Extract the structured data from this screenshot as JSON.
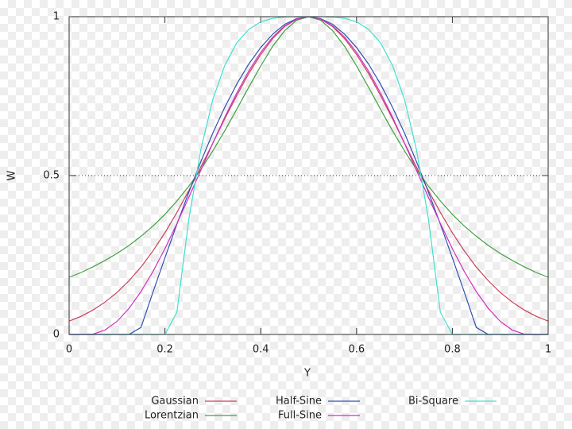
{
  "chart_data": {
    "type": "line",
    "xlabel": "Y",
    "ylabel": "W",
    "x": [
      0,
      0.025,
      0.05,
      0.075,
      0.1,
      0.125,
      0.15,
      0.175,
      0.2,
      0.225,
      0.25,
      0.275,
      0.3,
      0.325,
      0.35,
      0.375,
      0.4,
      0.425,
      0.45,
      0.475,
      0.5,
      0.525,
      0.55,
      0.575,
      0.6,
      0.625,
      0.65,
      0.675,
      0.7,
      0.725,
      0.75,
      0.775,
      0.8,
      0.825,
      0.85,
      0.875,
      0.9,
      0.925,
      0.95,
      0.975,
      1
    ],
    "series": [
      {
        "name": "Gaussian",
        "color": "#c8405a",
        "values": [
          0.042,
          0.057,
          0.077,
          0.102,
          0.132,
          0.169,
          0.212,
          0.263,
          0.32,
          0.384,
          0.453,
          0.527,
          0.602,
          0.679,
          0.752,
          0.821,
          0.881,
          0.931,
          0.969,
          0.992,
          1,
          0.992,
          0.969,
          0.931,
          0.881,
          0.821,
          0.752,
          0.679,
          0.602,
          0.527,
          0.453,
          0.384,
          0.32,
          0.263,
          0.212,
          0.169,
          0.132,
          0.102,
          0.077,
          0.057,
          0.042
        ]
      },
      {
        "name": "Lorentzian",
        "color": "#40a040",
        "values": [
          0.18,
          0.195,
          0.213,
          0.233,
          0.255,
          0.28,
          0.309,
          0.341,
          0.378,
          0.42,
          0.467,
          0.519,
          0.578,
          0.641,
          0.709,
          0.778,
          0.845,
          0.907,
          0.956,
          0.989,
          1,
          0.989,
          0.956,
          0.907,
          0.845,
          0.778,
          0.709,
          0.641,
          0.578,
          0.519,
          0.467,
          0.42,
          0.378,
          0.341,
          0.309,
          0.28,
          0.255,
          0.233,
          0.213,
          0.195,
          0.18
        ]
      },
      {
        "name": "Half-Sine",
        "color": "#3050b0",
        "values": [
          0,
          0,
          0,
          0,
          0,
          0,
          0.022,
          0.133,
          0.241,
          0.347,
          0.448,
          0.544,
          0.634,
          0.715,
          0.788,
          0.851,
          0.903,
          0.945,
          0.976,
          0.994,
          1,
          0.994,
          0.976,
          0.945,
          0.903,
          0.851,
          0.788,
          0.715,
          0.634,
          0.544,
          0.448,
          0.347,
          0.241,
          0.133,
          0.022,
          0,
          0,
          0,
          0,
          0,
          0
        ]
      },
      {
        "name": "Full-Sine",
        "color": "#d030c0",
        "values": [
          0,
          0,
          0.001,
          0.014,
          0.041,
          0.082,
          0.135,
          0.198,
          0.27,
          0.349,
          0.432,
          0.517,
          0.602,
          0.684,
          0.76,
          0.829,
          0.888,
          0.936,
          0.971,
          0.993,
          1,
          0.993,
          0.971,
          0.936,
          0.888,
          0.829,
          0.76,
          0.684,
          0.602,
          0.517,
          0.432,
          0.349,
          0.27,
          0.198,
          0.135,
          0.082,
          0.041,
          0.014,
          0.001,
          0,
          0
        ]
      },
      {
        "name": "Bi-Square",
        "color": "#40e0d0",
        "values": [
          0,
          0,
          0,
          0,
          0,
          0,
          0,
          0,
          0,
          0.07,
          0.364,
          0.582,
          0.74,
          0.847,
          0.918,
          0.96,
          0.984,
          0.995,
          0.999,
          1,
          1,
          1,
          0.999,
          0.995,
          0.984,
          0.96,
          0.918,
          0.847,
          0.74,
          0.582,
          0.364,
          0.07,
          0,
          0,
          0,
          0,
          0,
          0,
          0,
          0,
          0
        ]
      }
    ],
    "xlim": [
      0,
      1
    ],
    "xticks": [
      0,
      0.2,
      0.4,
      0.6,
      0.8,
      1
    ],
    "ylim": [
      0,
      1
    ],
    "yticks": [
      0,
      0.5,
      1
    ],
    "grid": true
  }
}
